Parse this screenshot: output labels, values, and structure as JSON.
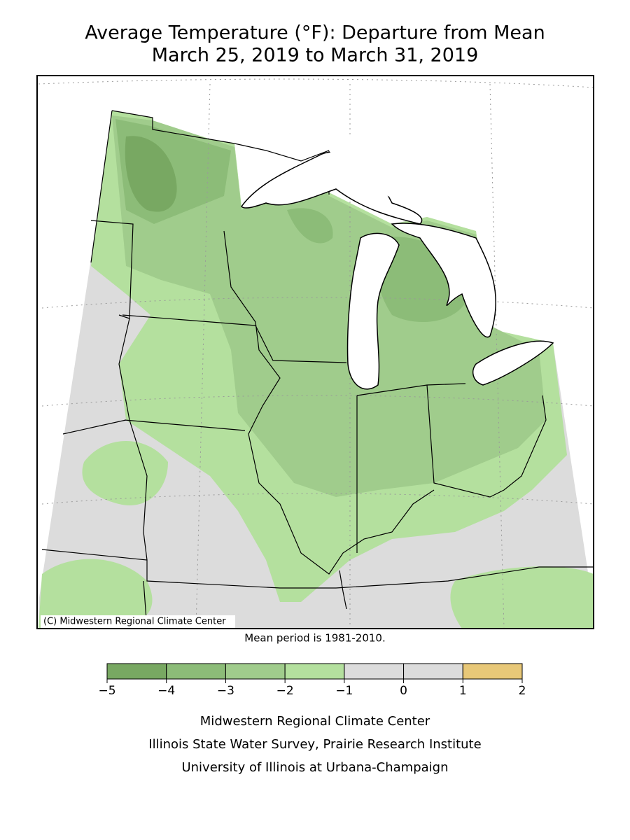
{
  "title": [
    "Average Temperature (°F): Departure from Mean",
    "March 25, 2019 to March 31, 2019"
  ],
  "copyright": "(C) Midwestern Regional Climate Center",
  "note": "Mean period is 1981-2010.",
  "legend": {
    "ticks": [
      {
        "value": -5,
        "label": "−5"
      },
      {
        "value": -4,
        "label": "−4"
      },
      {
        "value": -3,
        "label": "−3"
      },
      {
        "value": -2,
        "label": "−2"
      },
      {
        "value": -1,
        "label": "−1"
      },
      0,
      1,
      2
    ],
    "colors": [
      "#78a862",
      "#8cbc78",
      "#a0cc8c",
      "#b4e09e",
      "#dcdcdc",
      "#dcdcdc",
      "#e8c878"
    ]
  },
  "credits": [
    "Midwestern Regional Climate Center",
    "Illinois State Water Survey, Prairie Research Institute",
    "University of Illinois at Urbana-Champaign"
  ]
}
